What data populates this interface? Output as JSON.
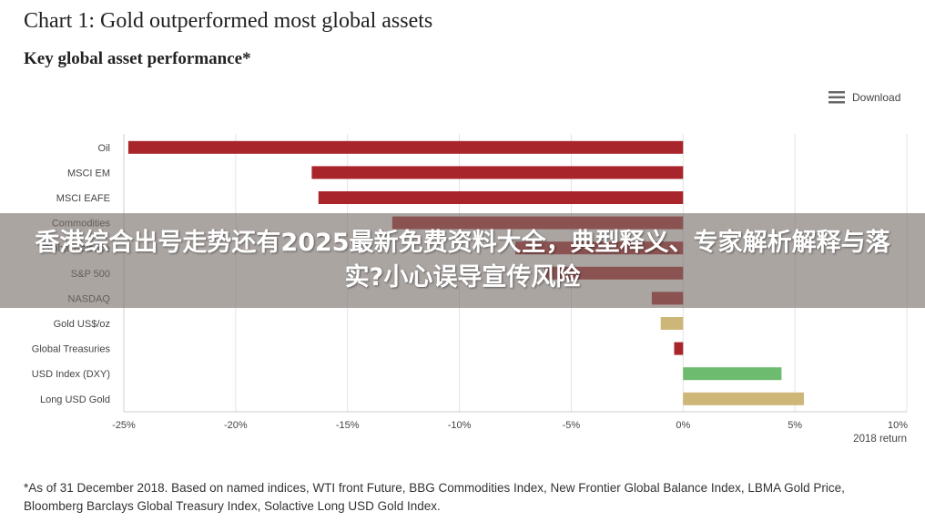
{
  "page": {
    "title": "Chart 1: Gold outperformed most global assets",
    "subtitle": "Key global asset performance*",
    "download_label": "Download",
    "footnote": "*As of 31 December 2018. Based on named indices, WTI front Future, BBG Commodities Index, New Frontier Global Balance Index, LBMA Gold Price, Bloomberg Barclays Global Treasury Index, Solactive Long USD Gold Index.",
    "banner_text": "香港综合出号走势还有2025最新免费资料大全，典型释义、专家解析解释与落实?小心误导宣传风险",
    "icons": {
      "download": "menu-icon"
    }
  },
  "chart_data": {
    "type": "bar",
    "orientation": "horizontal",
    "categories": [
      "Oil",
      "MSCI EM",
      "MSCI EAFE",
      "Commodities",
      "Global Balance",
      "S&P 500",
      "NASDAQ",
      "Gold US$/oz",
      "Global Treasuries",
      "USD Index (DXY)",
      "Long USD Gold"
    ],
    "values": [
      -24.8,
      -16.6,
      -16.3,
      -13.0,
      -7.5,
      -6.2,
      -1.4,
      -1.0,
      -0.4,
      4.4,
      5.4
    ],
    "colors": [
      "#a8262b",
      "#a8262b",
      "#a8262b",
      "#a8262b",
      "#a8262b",
      "#a8262b",
      "#a8262b",
      "#cdb678",
      "#a8262b",
      "#6dbb6f",
      "#cdb678"
    ],
    "xlim": [
      -25,
      10
    ],
    "xticks": [
      -25,
      -20,
      -15,
      -10,
      -5,
      0,
      5,
      10
    ],
    "xtick_labels": [
      "-25%",
      "-20%",
      "-15%",
      "-10%",
      "-5%",
      "0%",
      "5%",
      "10%"
    ],
    "xlabel": "2018 return",
    "grid": true
  }
}
